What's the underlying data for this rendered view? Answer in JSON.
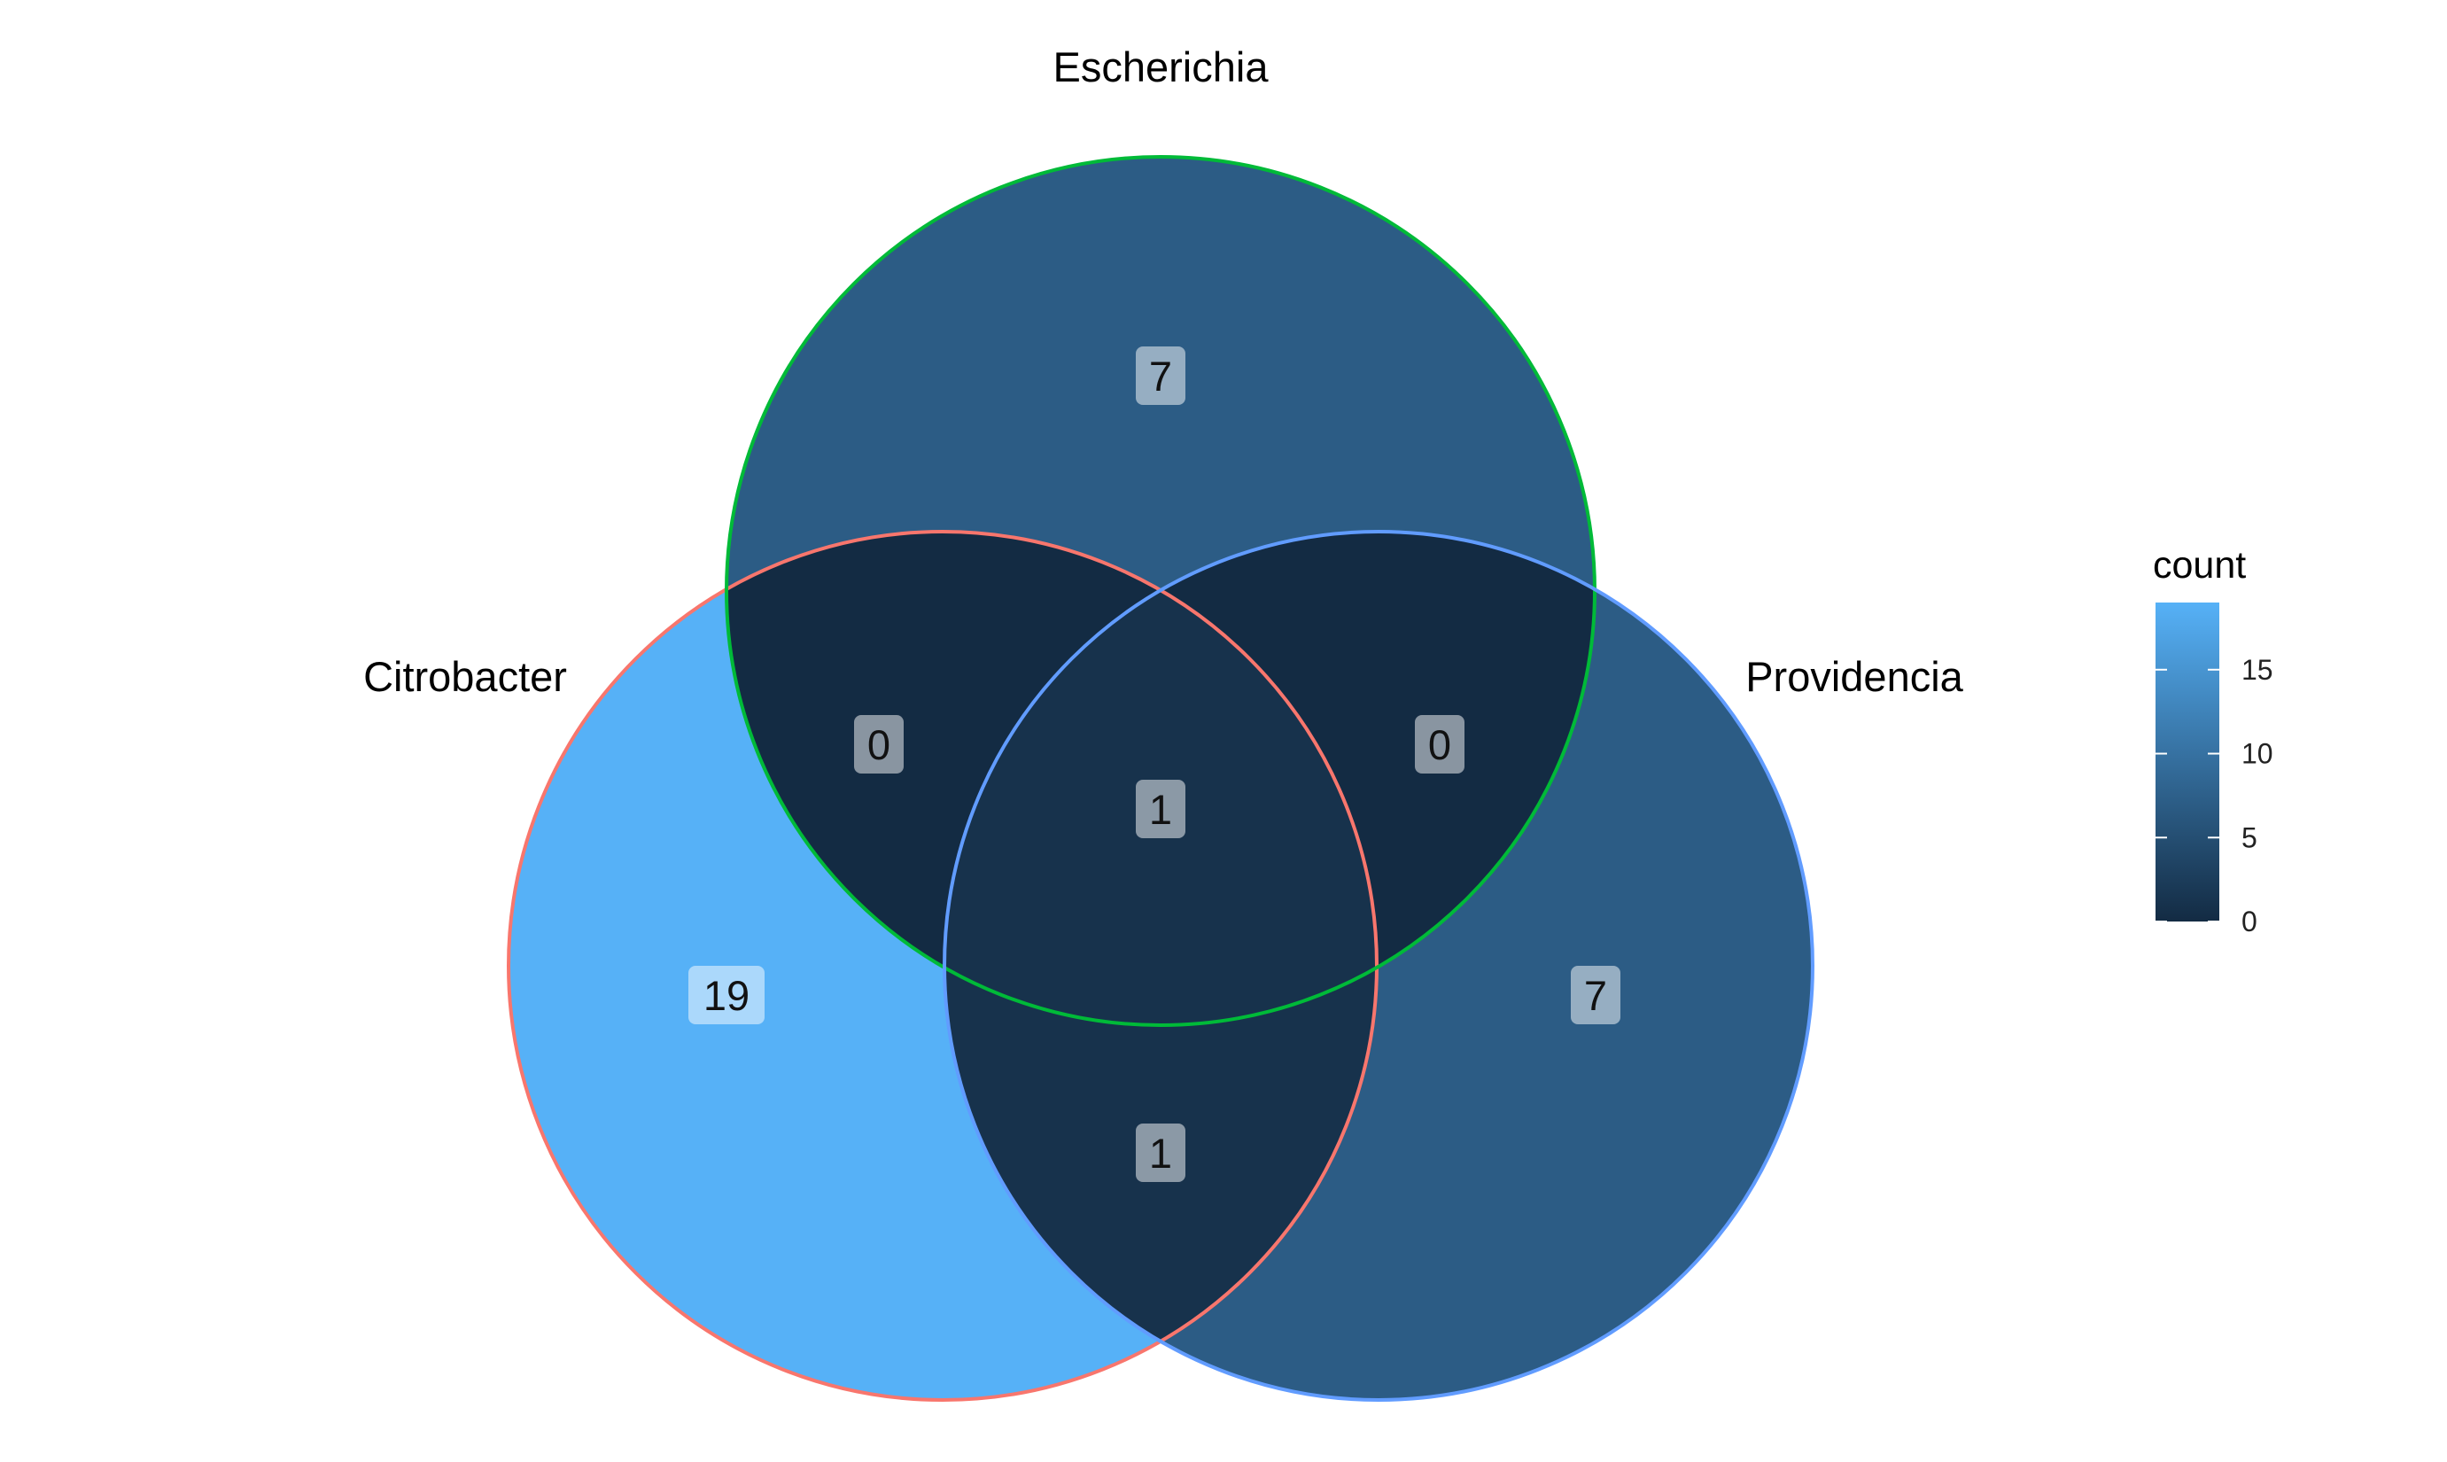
{
  "sets": [
    {
      "name": "Escherichia",
      "outline_color": "#00BA38"
    },
    {
      "name": "Citrobacter",
      "outline_color": "#F8766D"
    },
    {
      "name": "Providencia",
      "outline_color": "#619CFF"
    }
  ],
  "regions": [
    {
      "id": "escherichia-only",
      "sets": [
        "Escherichia"
      ],
      "count": 7
    },
    {
      "id": "citrobacter-escherichia",
      "sets": [
        "Citrobacter",
        "Escherichia"
      ],
      "count": 0
    },
    {
      "id": "escherichia-providencia",
      "sets": [
        "Escherichia",
        "Providencia"
      ],
      "count": 0
    },
    {
      "id": "all-three",
      "sets": [
        "Citrobacter",
        "Escherichia",
        "Providencia"
      ],
      "count": 1
    },
    {
      "id": "citrobacter-only",
      "sets": [
        "Citrobacter"
      ],
      "count": 19
    },
    {
      "id": "providencia-only",
      "sets": [
        "Providencia"
      ],
      "count": 7
    },
    {
      "id": "citrobacter-providencia",
      "sets": [
        "Citrobacter",
        "Providencia"
      ],
      "count": 1
    }
  ],
  "legend": {
    "title": "count",
    "ticks": [
      "0",
      "5",
      "10",
      "15"
    ],
    "tick_values": [
      0,
      5,
      10,
      15
    ],
    "range": [
      0,
      19
    ],
    "low_color": "#132B43",
    "high_color": "#56B1F7"
  }
}
